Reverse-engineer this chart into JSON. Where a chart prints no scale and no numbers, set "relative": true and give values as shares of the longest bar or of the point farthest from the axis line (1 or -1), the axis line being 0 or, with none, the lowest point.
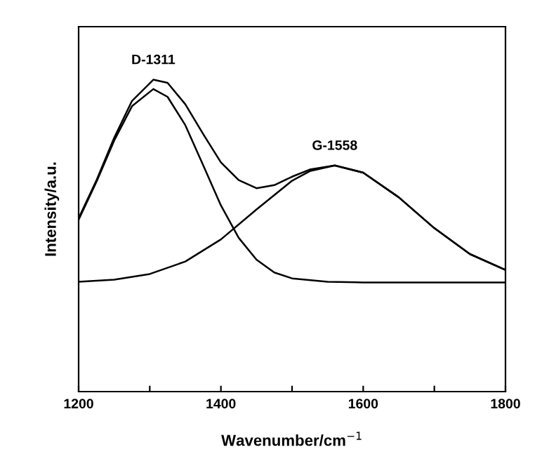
{
  "chart_data": {
    "type": "line",
    "relative": true,
    "xlabel": "Wavenumber/cm$^{−1}$",
    "ylabel": "Intensity/a.u.",
    "xlim": [
      1200,
      1800
    ],
    "xticks": [
      1200,
      {
        "value": 1300,
        "label": null
      },
      1400,
      {
        "value": 1500,
        "label": null
      },
      1600,
      {
        "value": 1700,
        "label": null
      },
      1800
    ],
    "series": [
      {
        "color": "#000000",
        "x": [
          1200,
          1225,
          1250,
          1275,
          1305,
          1325,
          1350,
          1375,
          1400,
          1425,
          1450,
          1475,
          1500,
          1525,
          1560,
          1600,
          1650,
          1700,
          1750,
          1800
        ],
        "values": [
          0.556,
          0.677,
          0.814,
          0.932,
          1.0,
          0.99,
          0.921,
          0.826,
          0.735,
          0.678,
          0.652,
          0.662,
          0.689,
          0.712,
          0.725,
          0.702,
          0.623,
          0.524,
          0.441,
          0.39
        ]
      },
      {
        "color": "#000000",
        "x": [
          1200,
          1225,
          1250,
          1275,
          1305,
          1325,
          1350,
          1375,
          1400,
          1425,
          1450,
          1475,
          1500,
          1550,
          1600,
          1800
        ],
        "values": [
          0.551,
          0.672,
          0.805,
          0.915,
          0.97,
          0.945,
          0.854,
          0.726,
          0.597,
          0.493,
          0.423,
          0.382,
          0.363,
          0.352,
          0.35,
          0.35
        ]
      },
      {
        "color": "#000000",
        "x": [
          1200,
          1250,
          1300,
          1350,
          1400,
          1450,
          1500,
          1525,
          1560,
          1600,
          1650,
          1700,
          1750,
          1800
        ],
        "values": [
          0.352,
          0.359,
          0.377,
          0.417,
          0.488,
          0.584,
          0.676,
          0.707,
          0.725,
          0.702,
          0.623,
          0.524,
          0.441,
          0.39
        ]
      }
    ],
    "annotations": [
      {
        "text": "D-1311",
        "x": 1305,
        "y": 1.0
      },
      {
        "text": "G-1558",
        "x": 1560,
        "y": 0.725
      }
    ],
    "marker": "none",
    "line_style": "solid",
    "grid": false,
    "legend": false
  }
}
